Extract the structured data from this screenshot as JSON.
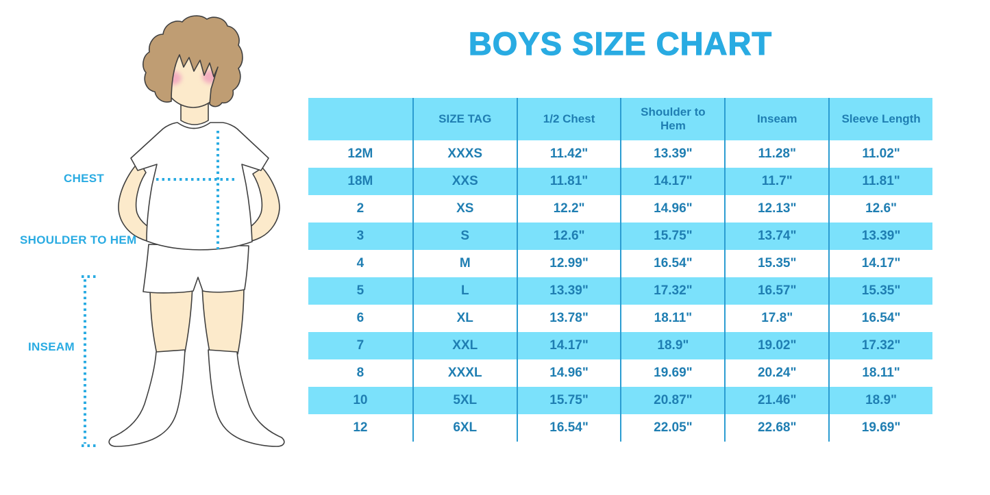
{
  "chart_data": {
    "type": "table",
    "title": "BOYS SIZE CHART",
    "columns": [
      "",
      "SIZE TAG",
      "1/2 Chest",
      "Shoulder to Hem",
      "Inseam",
      "Sleeve Length"
    ],
    "rows": [
      [
        "12M",
        "XXXS",
        "11.42\"",
        "13.39\"",
        "11.28\"",
        "11.02\""
      ],
      [
        "18M",
        "XXS",
        "11.81\"",
        "14.17\"",
        "11.7\"",
        "11.81\""
      ],
      [
        "2",
        "XS",
        "12.2\"",
        "14.96\"",
        "12.13\"",
        "12.6\""
      ],
      [
        "3",
        "S",
        "12.6\"",
        "15.75\"",
        "13.74\"",
        "13.39\""
      ],
      [
        "4",
        "M",
        "12.99\"",
        "16.54\"",
        "15.35\"",
        "14.17\""
      ],
      [
        "5",
        "L",
        "13.39\"",
        "17.32\"",
        "16.57\"",
        "15.35\""
      ],
      [
        "6",
        "XL",
        "13.78\"",
        "18.11\"",
        "17.8\"",
        "16.54\""
      ],
      [
        "7",
        "XXL",
        "14.17\"",
        "18.9\"",
        "19.02\"",
        "17.32\""
      ],
      [
        "8",
        "XXXL",
        "14.96\"",
        "19.69\"",
        "20.24\"",
        "18.11\""
      ],
      [
        "10",
        "5XL",
        "15.75\"",
        "20.87\"",
        "21.46\"",
        "18.9\""
      ],
      [
        "12",
        "6XL",
        "16.54\"",
        "22.05\"",
        "22.68\"",
        "19.69\""
      ]
    ],
    "layout": {
      "legend": "none",
      "grid": "vertical column separators only",
      "row_striping": "white and light blue alternating, header row light blue"
    }
  },
  "figure": {
    "labels": {
      "chest": "CHEST",
      "shoulder_to_hem": "SHOULDER TO HEM",
      "inseam": "INSEAM"
    }
  },
  "colors": {
    "accent": "#29ABE2",
    "row_blue": "#7BE1FB",
    "line_blue": "#2B9CD1",
    "cell_text": "#1F7EB2",
    "hair": "#BF9D73",
    "skin": "#FCEACB",
    "cheek": "#F3AFC0",
    "outline": "#3F3F3F",
    "background": "#FFFFFF"
  }
}
